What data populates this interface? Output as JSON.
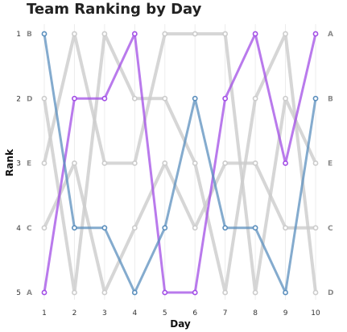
{
  "chart_data": {
    "type": "line",
    "title": "Team Ranking by Day",
    "xlabel": "Day",
    "ylabel": "Rank",
    "x": [
      1,
      2,
      3,
      4,
      5,
      6,
      7,
      8,
      9,
      10
    ],
    "yticks": [
      1,
      2,
      3,
      4,
      5
    ],
    "ylim": [
      5,
      1
    ],
    "y_inverted": true,
    "grid": "vertical",
    "left_team_labels": [
      "B",
      "D",
      "E",
      "C",
      "A"
    ],
    "right_team_labels": [
      "A",
      "B",
      "E",
      "C",
      "D"
    ],
    "series": [
      {
        "name": "A",
        "values": [
          5,
          2,
          2,
          1,
          5,
          5,
          2,
          1,
          3,
          1
        ],
        "color": "#a24ee6",
        "highlight": true
      },
      {
        "name": "B",
        "values": [
          1,
          4,
          4,
          5,
          4,
          2,
          4,
          4,
          5,
          2
        ],
        "color": "#5b8fbd",
        "highlight": true
      },
      {
        "name": "C",
        "values": [
          4,
          3,
          5,
          4,
          3,
          4,
          3,
          3,
          4,
          4
        ],
        "color": "#cccccc",
        "highlight": false
      },
      {
        "name": "D",
        "values": [
          2,
          5,
          1,
          2,
          2,
          3,
          5,
          2,
          1,
          5
        ],
        "color": "#cccccc",
        "highlight": false
      },
      {
        "name": "E",
        "values": [
          3,
          1,
          3,
          3,
          1,
          1,
          1,
          5,
          2,
          3
        ],
        "color": "#cccccc",
        "highlight": false
      }
    ]
  }
}
